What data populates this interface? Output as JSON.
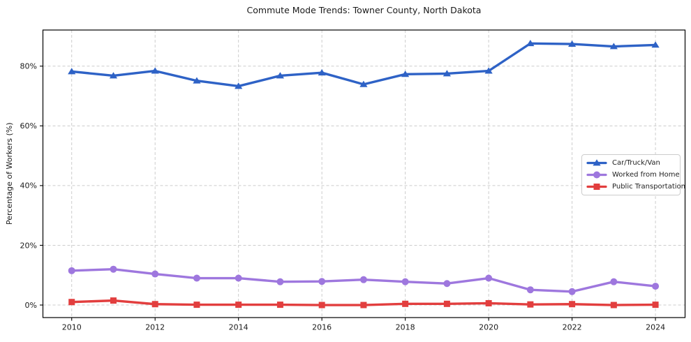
{
  "figure": {
    "background": "#ffffff"
  },
  "chart_data": {
    "type": "line",
    "title": "Commute Mode Trends: Towner County, North Dakota",
    "xlabel": "",
    "ylabel": "Percentage of Workers (%)",
    "x": [
      2010,
      2011,
      2012,
      2013,
      2014,
      2015,
      2016,
      2017,
      2018,
      2019,
      2020,
      2021,
      2022,
      2023,
      2024
    ],
    "x_ticks": [
      2010,
      2012,
      2014,
      2016,
      2018,
      2020,
      2022,
      2024
    ],
    "x_tick_labels": [
      "2010",
      "2012",
      "2014",
      "2016",
      "2018",
      "2020",
      "2022",
      "2024"
    ],
    "y_ticks": [
      0,
      20,
      40,
      60,
      80
    ],
    "y_tick_labels": [
      "0%",
      "20%",
      "40%",
      "60%",
      "80%"
    ],
    "xlim": [
      2009.31,
      2024.71
    ],
    "ylim": [
      -4.2,
      92.1
    ],
    "grid": true,
    "grid_style": "dashed",
    "grid_color": "#cccccc",
    "axis_color": "#000000",
    "text_color": "#1a1a1a",
    "legend": {
      "position": "center-right",
      "border_color": "#cccccc",
      "background": "#ffffff"
    },
    "series": [
      {
        "name": "Car/Truck/Van",
        "marker": "triangle",
        "color": "#2e62c6",
        "values": [
          78.2,
          76.8,
          78.4,
          75.1,
          73.3,
          76.8,
          77.8,
          73.9,
          77.3,
          77.5,
          78.4,
          87.6,
          87.4,
          86.6,
          87.1
        ]
      },
      {
        "name": "Worked from Home",
        "marker": "circle",
        "color": "#9e77de",
        "values": [
          11.5,
          12.0,
          10.4,
          9.0,
          9.0,
          7.8,
          7.9,
          8.5,
          7.8,
          7.2,
          9.0,
          5.1,
          4.5,
          7.8,
          6.3
        ]
      },
      {
        "name": "Public Transportation",
        "marker": "square",
        "color": "#e23e3e",
        "values": [
          1.0,
          1.5,
          0.3,
          0.1,
          0.1,
          0.1,
          0.0,
          0.0,
          0.4,
          0.4,
          0.6,
          0.2,
          0.3,
          0.0,
          0.1
        ]
      }
    ]
  }
}
